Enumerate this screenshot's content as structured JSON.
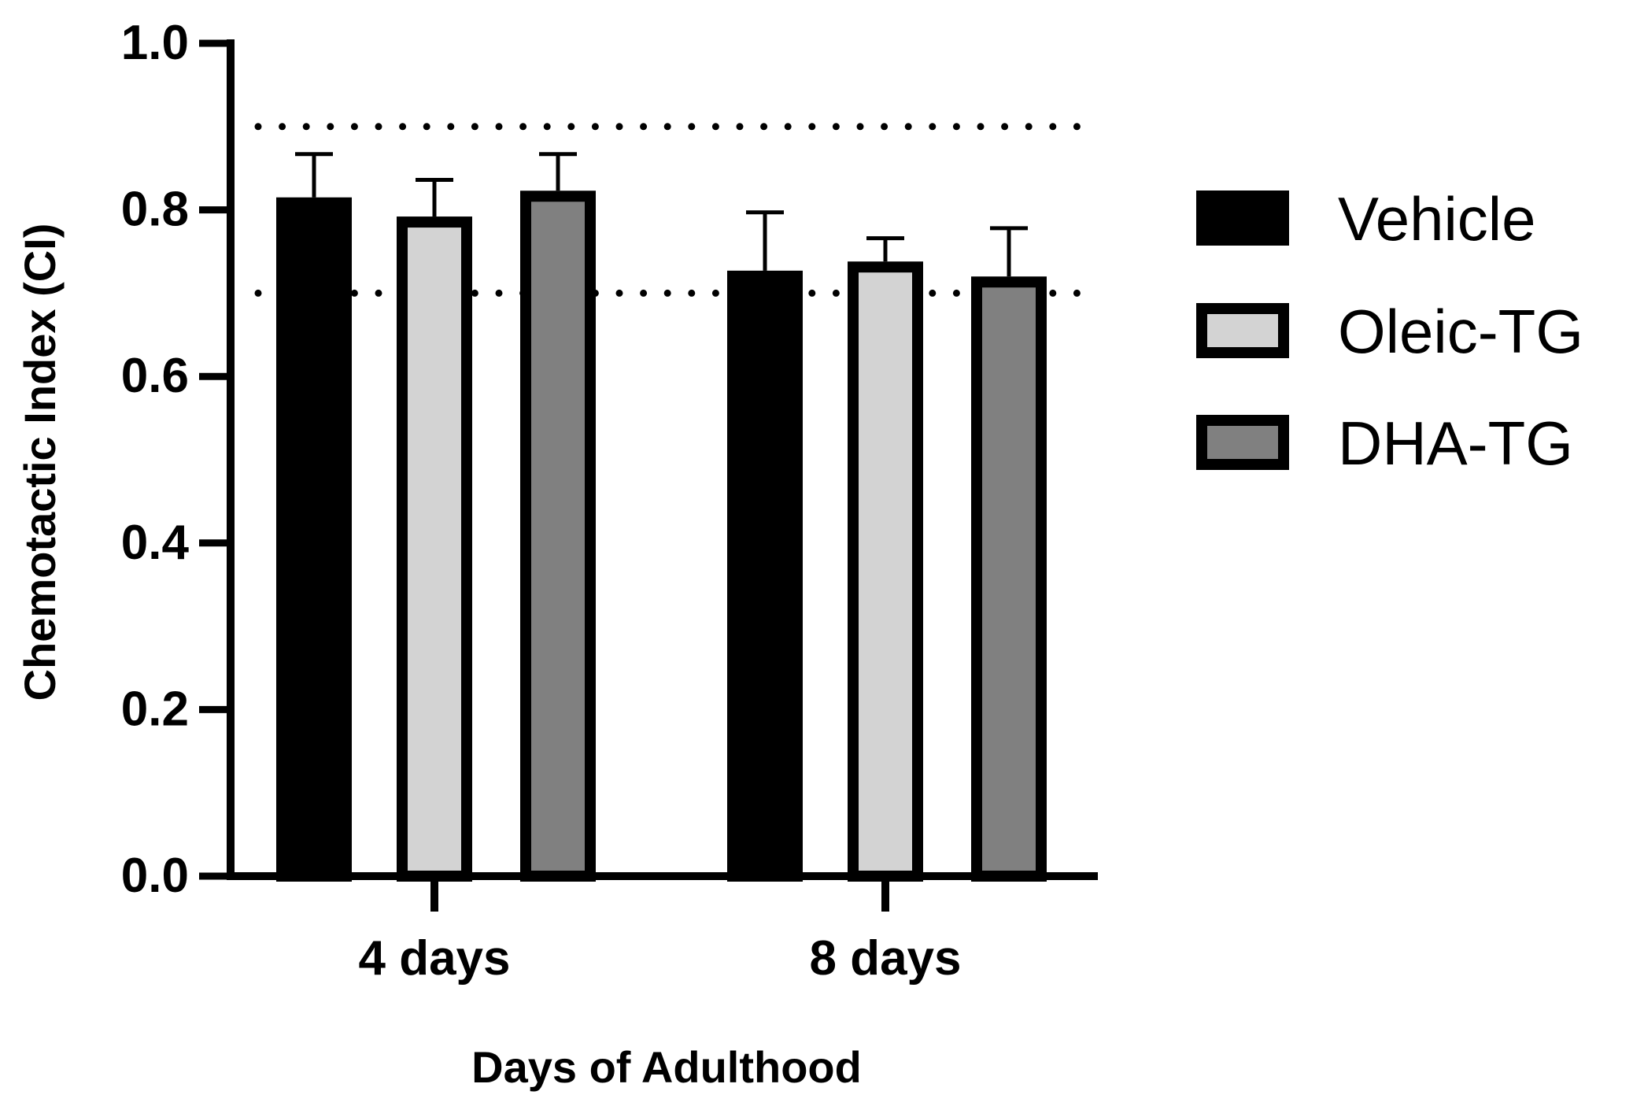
{
  "chart_data": {
    "type": "bar",
    "title": "",
    "xlabel": "Days of Adulthood",
    "ylabel": "Chemotactic Index (CI)",
    "ylim": [
      0.0,
      1.0
    ],
    "yticks": [
      0.0,
      0.2,
      0.4,
      0.6,
      0.8,
      1.0
    ],
    "ytick_labels": [
      "0.0",
      "0.2",
      "0.4",
      "0.6",
      "0.8",
      "1.0"
    ],
    "categories": [
      "4 days",
      "8 days"
    ],
    "series": [
      {
        "name": "Vehicle",
        "color": "#000000",
        "values": [
          0.815,
          0.727
        ],
        "error": [
          0.052,
          0.07
        ]
      },
      {
        "name": "Oleic-TG",
        "color": "#d3d3d3",
        "values": [
          0.792,
          0.738
        ],
        "error": [
          0.044,
          0.028
        ]
      },
      {
        "name": "DHA-TG",
        "color": "#808080",
        "values": [
          0.823,
          0.72
        ],
        "error": [
          0.044,
          0.058
        ]
      }
    ],
    "reference_lines": [
      0.9,
      0.7
    ],
    "grid": false,
    "legend_position": "right"
  }
}
